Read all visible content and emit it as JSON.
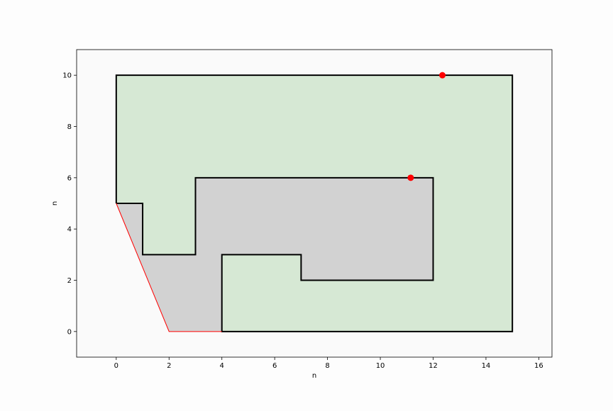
{
  "chart_data": {
    "type": "line",
    "xlabel": "n",
    "ylabel": "n",
    "xlim": [
      -1.5,
      16.5
    ],
    "ylim": [
      -1,
      11
    ],
    "xticks": [
      0,
      2,
      4,
      6,
      8,
      10,
      12,
      14,
      16
    ],
    "yticks": [
      0,
      2,
      4,
      6,
      8,
      10
    ],
    "grid": false,
    "regions": [
      {
        "name": "green-region",
        "color": "#d6e8d4",
        "points": [
          [
            0,
            10
          ],
          [
            15,
            10
          ],
          [
            15,
            0
          ],
          [
            4,
            0
          ],
          [
            4,
            3
          ],
          [
            7,
            3
          ],
          [
            7,
            2
          ],
          [
            12,
            2
          ],
          [
            12,
            6
          ],
          [
            3,
            6
          ],
          [
            3,
            3
          ],
          [
            1,
            3
          ],
          [
            1,
            5
          ],
          [
            0,
            5
          ]
        ]
      },
      {
        "name": "gray-region",
        "color": "#d2d2d2",
        "points": [
          [
            0,
            5
          ],
          [
            1,
            5
          ],
          [
            1,
            3
          ],
          [
            3,
            3
          ],
          [
            3,
            6
          ],
          [
            12,
            6
          ],
          [
            12,
            2
          ],
          [
            7,
            2
          ],
          [
            7,
            3
          ],
          [
            4,
            3
          ],
          [
            4,
            0
          ],
          [
            2,
            0
          ]
        ]
      }
    ],
    "series": [
      {
        "color": "#000000",
        "paths": [
          [
            [
              0,
              5
            ],
            [
              0,
              10
            ],
            [
              15,
              10
            ],
            [
              15,
              0
            ],
            [
              4,
              0
            ],
            [
              4,
              3
            ],
            [
              7,
              3
            ],
            [
              7,
              2
            ],
            [
              12,
              2
            ],
            [
              12,
              6
            ],
            [
              3,
              6
            ],
            [
              3,
              3
            ],
            [
              1,
              3
            ],
            [
              1,
              5
            ],
            [
              0,
              5
            ]
          ]
        ]
      },
      {
        "color": "#ff0000",
        "paths": [
          [
            [
              0,
              5
            ],
            [
              2,
              0
            ],
            [
              4,
              0
            ]
          ]
        ]
      }
    ],
    "points": [
      {
        "x": 12.35,
        "y": 10,
        "color": "#ff0000"
      },
      {
        "x": 11.15,
        "y": 6,
        "color": "#ff0000"
      }
    ]
  }
}
